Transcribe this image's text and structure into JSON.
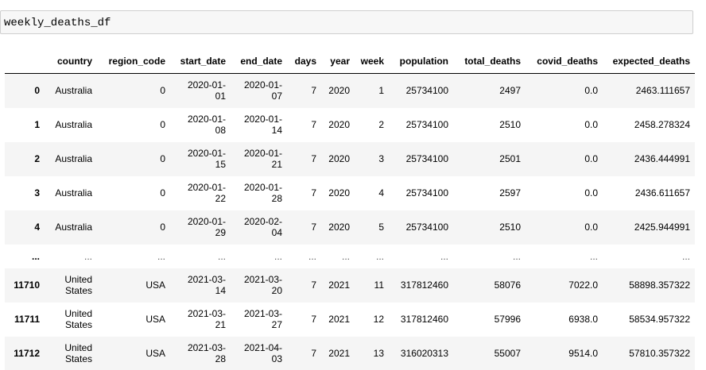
{
  "input": {
    "code": "weekly_deaths_df"
  },
  "table": {
    "columns": [
      "",
      "country",
      "region_code",
      "start_date",
      "end_date",
      "days",
      "year",
      "week",
      "population",
      "total_deaths",
      "covid_deaths",
      "expected_deaths"
    ],
    "rows": [
      {
        "index": "0",
        "country": "Australia",
        "region_code": "0",
        "start_date_a": "2020-01-",
        "start_date_b": "01",
        "end_date_a": "2020-01-",
        "end_date_b": "07",
        "days": "7",
        "year": "2020",
        "week": "1",
        "population": "25734100",
        "total_deaths": "2497",
        "covid_deaths": "0.0",
        "expected_deaths": "2463.111657"
      },
      {
        "index": "1",
        "country": "Australia",
        "region_code": "0",
        "start_date_a": "2020-01-",
        "start_date_b": "08",
        "end_date_a": "2020-01-",
        "end_date_b": "14",
        "days": "7",
        "year": "2020",
        "week": "2",
        "population": "25734100",
        "total_deaths": "2510",
        "covid_deaths": "0.0",
        "expected_deaths": "2458.278324"
      },
      {
        "index": "2",
        "country": "Australia",
        "region_code": "0",
        "start_date_a": "2020-01-",
        "start_date_b": "15",
        "end_date_a": "2020-01-",
        "end_date_b": "21",
        "days": "7",
        "year": "2020",
        "week": "3",
        "population": "25734100",
        "total_deaths": "2501",
        "covid_deaths": "0.0",
        "expected_deaths": "2436.444991"
      },
      {
        "index": "3",
        "country": "Australia",
        "region_code": "0",
        "start_date_a": "2020-01-",
        "start_date_b": "22",
        "end_date_a": "2020-01-",
        "end_date_b": "28",
        "days": "7",
        "year": "2020",
        "week": "4",
        "population": "25734100",
        "total_deaths": "2597",
        "covid_deaths": "0.0",
        "expected_deaths": "2436.611657"
      },
      {
        "index": "4",
        "country": "Australia",
        "region_code": "0",
        "start_date_a": "2020-01-",
        "start_date_b": "29",
        "end_date_a": "2020-02-",
        "end_date_b": "04",
        "days": "7",
        "year": "2020",
        "week": "5",
        "population": "25734100",
        "total_deaths": "2510",
        "covid_deaths": "0.0",
        "expected_deaths": "2425.944991"
      },
      {
        "index": "...",
        "ellipsis": "..."
      },
      {
        "index": "11710",
        "country_a": "United",
        "country_b": "States",
        "region_code": "USA",
        "start_date_a": "2021-03-",
        "start_date_b": "14",
        "end_date_a": "2021-03-",
        "end_date_b": "20",
        "days": "7",
        "year": "2021",
        "week": "11",
        "population": "317812460",
        "total_deaths": "58076",
        "covid_deaths": "7022.0",
        "expected_deaths": "58898.357322"
      },
      {
        "index": "11711",
        "country_a": "United",
        "country_b": "States",
        "region_code": "USA",
        "start_date_a": "2021-03-",
        "start_date_b": "21",
        "end_date_a": "2021-03-",
        "end_date_b": "27",
        "days": "7",
        "year": "2021",
        "week": "12",
        "population": "317812460",
        "total_deaths": "57996",
        "covid_deaths": "6938.0",
        "expected_deaths": "58534.957322"
      },
      {
        "index": "11712",
        "country_a": "United",
        "country_b": "States",
        "region_code": "USA",
        "start_date_a": "2021-03-",
        "start_date_b": "28",
        "end_date_a": "2021-04-",
        "end_date_b": "03",
        "days": "7",
        "year": "2021",
        "week": "13",
        "population": "316020313",
        "total_deaths": "55007",
        "covid_deaths": "9514.0",
        "expected_deaths": "57810.357322"
      }
    ]
  }
}
